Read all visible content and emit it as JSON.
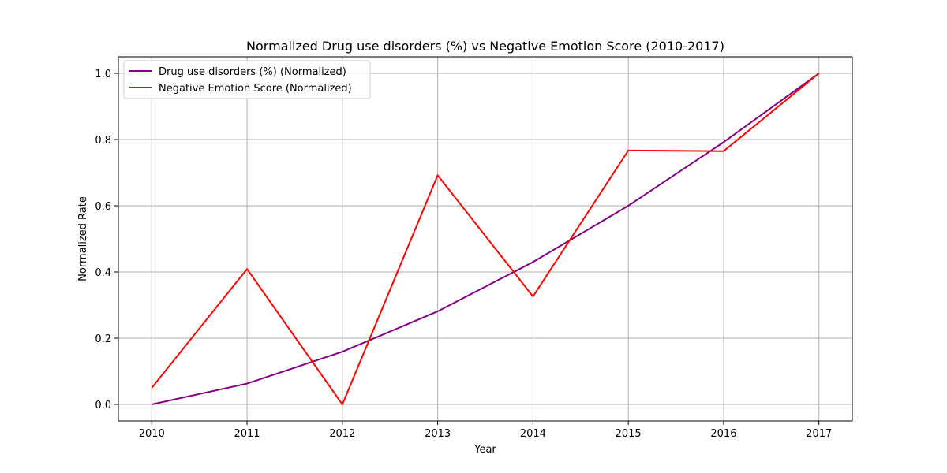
{
  "chart_data": {
    "type": "line",
    "title": "Normalized Drug use disorders (%) vs Negative Emotion Score (2010-2017)",
    "xlabel": "Year",
    "ylabel": "Normalized Rate",
    "x": [
      2010,
      2011,
      2012,
      2013,
      2014,
      2015,
      2016,
      2017
    ],
    "x_ticks": [
      "2010",
      "2011",
      "2012",
      "2013",
      "2014",
      "2015",
      "2016",
      "2017"
    ],
    "xlim": [
      2009.65,
      2017.35
    ],
    "ylim": [
      -0.05,
      1.05
    ],
    "y_ticks": [
      "0.0",
      "0.2",
      "0.4",
      "0.6",
      "0.8",
      "1.0"
    ],
    "grid": true,
    "legend_position": "top-left",
    "series": [
      {
        "name": "Drug use disorders (%) (Normalized)",
        "color": "#800080",
        "values": [
          0.0,
          0.063,
          0.159,
          0.281,
          0.43,
          0.6,
          0.792,
          1.0
        ]
      },
      {
        "name": "Negative Emotion Score (Normalized)",
        "color": "#ff0000",
        "values": [
          0.05,
          0.409,
          0.0,
          0.692,
          0.326,
          0.767,
          0.765,
          1.0
        ]
      }
    ]
  }
}
